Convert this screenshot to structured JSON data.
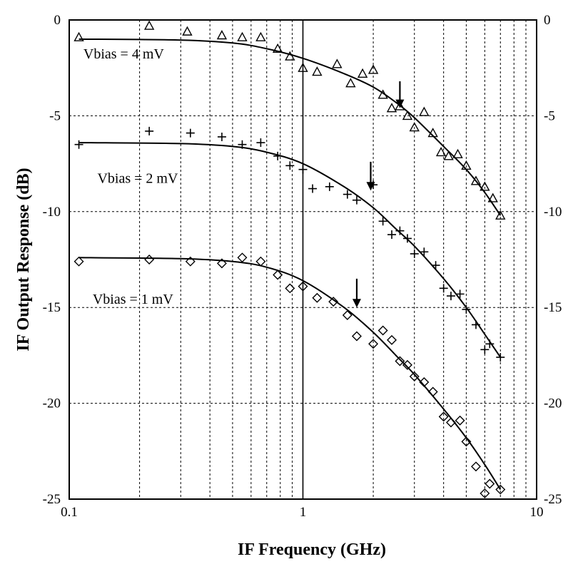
{
  "chart_data": {
    "type": "scatter",
    "title": "",
    "xlabel": "IF Frequency (GHz)",
    "ylabel": "IF Output Response (dB)",
    "xscale": "log",
    "xlim": [
      0.1,
      10
    ],
    "ylim": [
      -25,
      0
    ],
    "grid": true,
    "x_ticks": [
      0.1,
      1,
      10
    ],
    "x_tick_labels": [
      "0.1",
      "1",
      "10"
    ],
    "y_ticks": [
      0,
      -5,
      -10,
      -15,
      -20,
      -25
    ],
    "y_tick_labels": [
      "0",
      "-5",
      "-10",
      "-15",
      "-20",
      "-25"
    ],
    "right_y_tick_labels": [
      "0",
      "-5",
      "-10",
      "-15",
      "-20",
      "-25"
    ],
    "series": [
      {
        "name": "Vbias = 4 mV",
        "marker": "triangle",
        "points": [
          [
            0.11,
            -0.9
          ],
          [
            0.22,
            -0.3
          ],
          [
            0.32,
            -0.6
          ],
          [
            0.45,
            -0.8
          ],
          [
            0.55,
            -0.9
          ],
          [
            0.66,
            -0.9
          ],
          [
            0.78,
            -1.5
          ],
          [
            0.88,
            -1.9
          ],
          [
            1.0,
            -2.5
          ],
          [
            1.15,
            -2.7
          ],
          [
            1.4,
            -2.3
          ],
          [
            1.6,
            -3.3
          ],
          [
            1.8,
            -2.8
          ],
          [
            2.0,
            -2.6
          ],
          [
            2.2,
            -3.9
          ],
          [
            2.4,
            -4.6
          ],
          [
            2.6,
            -4.5
          ],
          [
            2.8,
            -5.0
          ],
          [
            3.0,
            -5.6
          ],
          [
            3.3,
            -4.8
          ],
          [
            3.6,
            -5.9
          ],
          [
            3.9,
            -6.9
          ],
          [
            4.2,
            -7.1
          ],
          [
            4.6,
            -7.0
          ],
          [
            5.0,
            -7.6
          ],
          [
            5.5,
            -8.4
          ],
          [
            6.0,
            -8.7
          ],
          [
            6.5,
            -9.3
          ],
          [
            7.0,
            -10.2
          ]
        ],
        "fit": [
          [
            0.11,
            -1.0
          ],
          [
            0.3,
            -1.05
          ],
          [
            0.5,
            -1.2
          ],
          [
            0.7,
            -1.5
          ],
          [
            1.0,
            -2.0
          ],
          [
            1.5,
            -2.8
          ],
          [
            2.0,
            -3.5
          ],
          [
            2.5,
            -4.3
          ],
          [
            3.0,
            -5.1
          ],
          [
            4.0,
            -6.6
          ],
          [
            5.0,
            -7.8
          ],
          [
            6.0,
            -9.0
          ],
          [
            7.0,
            -10.2
          ]
        ]
      },
      {
        "name": "Vbias = 2 mV",
        "marker": "plus",
        "points": [
          [
            0.11,
            -6.5
          ],
          [
            0.22,
            -5.8
          ],
          [
            0.33,
            -5.9
          ],
          [
            0.45,
            -6.1
          ],
          [
            0.55,
            -6.5
          ],
          [
            0.66,
            -6.4
          ],
          [
            0.78,
            -7.1
          ],
          [
            0.88,
            -7.6
          ],
          [
            1.0,
            -7.8
          ],
          [
            1.1,
            -8.8
          ],
          [
            1.3,
            -8.7
          ],
          [
            1.55,
            -9.1
          ],
          [
            1.7,
            -9.4
          ],
          [
            2.0,
            -8.6
          ],
          [
            2.2,
            -10.5
          ],
          [
            2.4,
            -11.2
          ],
          [
            2.6,
            -11.0
          ],
          [
            2.8,
            -11.4
          ],
          [
            3.0,
            -12.2
          ],
          [
            3.3,
            -12.1
          ],
          [
            3.7,
            -12.8
          ],
          [
            4.0,
            -14.0
          ],
          [
            4.3,
            -14.4
          ],
          [
            4.7,
            -14.3
          ],
          [
            5.0,
            -15.1
          ],
          [
            5.5,
            -15.9
          ],
          [
            6.0,
            -17.2
          ],
          [
            6.3,
            -16.9
          ],
          [
            7.0,
            -17.6
          ]
        ],
        "fit": [
          [
            0.11,
            -6.4
          ],
          [
            0.3,
            -6.45
          ],
          [
            0.5,
            -6.6
          ],
          [
            0.7,
            -6.9
          ],
          [
            1.0,
            -7.5
          ],
          [
            1.5,
            -8.7
          ],
          [
            2.0,
            -9.8
          ],
          [
            2.5,
            -10.9
          ],
          [
            3.0,
            -11.8
          ],
          [
            4.0,
            -13.5
          ],
          [
            5.0,
            -15.0
          ],
          [
            6.0,
            -16.4
          ],
          [
            7.0,
            -17.6
          ]
        ]
      },
      {
        "name": "Vbias = 1 mV",
        "marker": "diamond",
        "points": [
          [
            0.11,
            -12.6
          ],
          [
            0.22,
            -12.5
          ],
          [
            0.33,
            -12.6
          ],
          [
            0.45,
            -12.7
          ],
          [
            0.55,
            -12.4
          ],
          [
            0.66,
            -12.6
          ],
          [
            0.78,
            -13.3
          ],
          [
            0.88,
            -14.0
          ],
          [
            1.0,
            -13.9
          ],
          [
            1.15,
            -14.5
          ],
          [
            1.35,
            -14.7
          ],
          [
            1.55,
            -15.4
          ],
          [
            1.7,
            -16.5
          ],
          [
            2.0,
            -16.9
          ],
          [
            2.2,
            -16.2
          ],
          [
            2.4,
            -16.7
          ],
          [
            2.6,
            -17.8
          ],
          [
            2.8,
            -18.0
          ],
          [
            3.0,
            -18.6
          ],
          [
            3.3,
            -18.9
          ],
          [
            3.6,
            -19.4
          ],
          [
            4.0,
            -20.7
          ],
          [
            4.3,
            -21.0
          ],
          [
            4.7,
            -20.9
          ],
          [
            5.0,
            -22.0
          ],
          [
            5.5,
            -23.3
          ],
          [
            6.0,
            -24.7
          ],
          [
            6.3,
            -24.2
          ],
          [
            7.0,
            -24.5
          ]
        ],
        "fit": [
          [
            0.11,
            -12.4
          ],
          [
            0.3,
            -12.45
          ],
          [
            0.5,
            -12.6
          ],
          [
            0.7,
            -12.9
          ],
          [
            1.0,
            -13.6
          ],
          [
            1.5,
            -15.0
          ],
          [
            2.0,
            -16.3
          ],
          [
            2.5,
            -17.5
          ],
          [
            3.0,
            -18.5
          ],
          [
            4.0,
            -20.3
          ],
          [
            5.0,
            -21.8
          ],
          [
            6.0,
            -23.2
          ],
          [
            7.0,
            -24.5
          ]
        ]
      }
    ],
    "annotations": [
      {
        "text": "Vbias = 4 mV",
        "x": 0.115,
        "y": -2.0
      },
      {
        "text": "Vbias = 2 mV",
        "x": 0.132,
        "y": -8.5
      },
      {
        "text": "Vbias = 1 mV",
        "x": 0.126,
        "y": -14.8
      }
    ],
    "arrows": [
      {
        "x": 2.6,
        "y_top": -3.2,
        "y_tip": -4.6
      },
      {
        "x": 1.95,
        "y_top": -7.4,
        "y_tip": -8.9
      },
      {
        "x": 1.7,
        "y_top": -13.5,
        "y_tip": -15.0
      }
    ]
  }
}
